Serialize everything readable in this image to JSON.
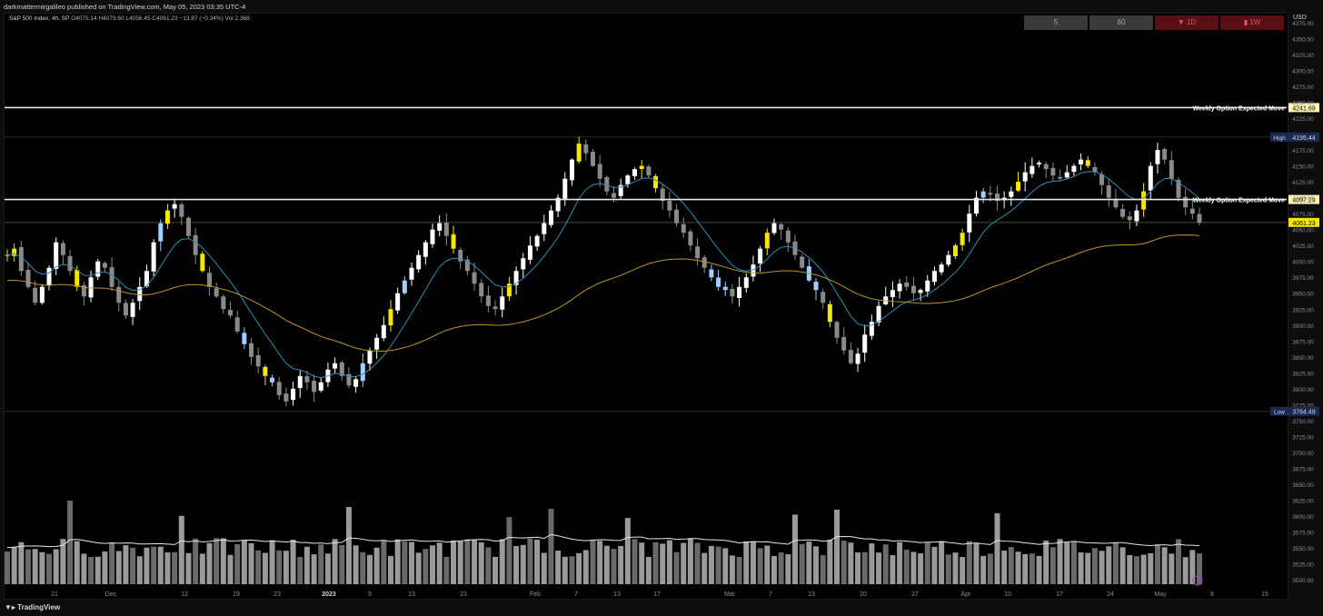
{
  "header": {
    "publisher": "darkmattermirgalileo published on TradingView.com, May 05, 2023 03:35 UTC-4"
  },
  "legend": {
    "symbol": "S&P 500 Index, 4h, SP",
    "open": "O4075.14",
    "high": "H4079.60",
    "low": "L4056.45",
    "close": "C4061.23",
    "change": "−13.87 (−0.34%)",
    "volume": "Vol 2.368"
  },
  "timeframes": [
    {
      "label": "5",
      "style": "gray"
    },
    {
      "label": "60",
      "style": "gray"
    },
    {
      "label": "▼ 1D",
      "style": "red"
    },
    {
      "label": "▮ 1W",
      "style": "red"
    }
  ],
  "currency": "USD",
  "footer": {
    "brand": "TradingView"
  },
  "colors": {
    "background": "#000000",
    "up_candle": "#ffffff",
    "down_candle": "#8a8a8a",
    "highlight_blue": "#9fd0ff",
    "highlight_yellow": "#f5e600",
    "ema_fast": "#2f8fb0",
    "ema_slow": "#b8952a",
    "volume_ma": "#e6e6e6"
  },
  "chart_data": {
    "type": "candlestick",
    "interval": "4h",
    "ylim": [
      3490,
      4385
    ],
    "y_ticks": [
      4375,
      4350,
      4325,
      4300,
      4275,
      4250,
      4225,
      4200,
      4175,
      4150,
      4125,
      4100,
      4075,
      4050,
      4025,
      4000,
      3975,
      3950,
      3925,
      3900,
      3875,
      3850,
      3825,
      3800,
      3775,
      3750,
      3725,
      3700,
      3675,
      3650,
      3625,
      3600,
      3575,
      3550,
      3525,
      3500
    ],
    "x_ticks": [
      "21",
      "Dec",
      "12",
      "19",
      "23",
      "2023",
      "9",
      "13",
      "23",
      "Feb",
      "7",
      "13",
      "17",
      "Mar",
      "7",
      "13",
      "20",
      "27",
      "Apr",
      "10",
      "17",
      "24",
      "May",
      "8",
      "15"
    ],
    "horizontal_lines": [
      {
        "label": "Weekly Option Expected Move",
        "value": 4241.69,
        "value_label": "4241.69"
      },
      {
        "label": "Weekly Option Expected Move",
        "value": 4097.29,
        "value_label": "4097.29"
      }
    ],
    "high_marker": {
      "label": "High",
      "value": 4195.44,
      "value_label": "4195.44"
    },
    "low_marker": {
      "label": "Low",
      "value": 3764.49,
      "value_label": "3764.49"
    },
    "last_price": {
      "value": 4061.23,
      "value_label": "4061.23"
    },
    "ohlc_path": [
      4010,
      4020,
      3985,
      3960,
      3935,
      3960,
      3990,
      4030,
      4010,
      3985,
      3960,
      3945,
      3975,
      4000,
      3990,
      3960,
      3935,
      3915,
      3935,
      3960,
      3985,
      4030,
      4060,
      4080,
      4090,
      4070,
      4040,
      4010,
      3985,
      3960,
      3945,
      3925,
      3915,
      3890,
      3870,
      3850,
      3835,
      3820,
      3810,
      3790,
      3780,
      3800,
      3820,
      3810,
      3795,
      3810,
      3830,
      3840,
      3820,
      3805,
      3815,
      3840,
      3860,
      3880,
      3900,
      3925,
      3950,
      3970,
      3990,
      4010,
      4030,
      4050,
      4060,
      4040,
      4020,
      4000,
      3985,
      3965,
      3945,
      3930,
      3925,
      3945,
      3965,
      3985,
      4005,
      4025,
      4040,
      4060,
      4080,
      4100,
      4130,
      4160,
      4185,
      4170,
      4150,
      4130,
      4110,
      4100,
      4120,
      4135,
      4145,
      4150,
      4135,
      4115,
      4095,
      4080,
      4060,
      4045,
      4025,
      4005,
      3990,
      3975,
      3960,
      3955,
      3945,
      3960,
      3975,
      3995,
      4020,
      4045,
      4060,
      4050,
      4030,
      4010,
      3990,
      3970,
      3955,
      3935,
      3905,
      3880,
      3860,
      3840,
      3855,
      3885,
      3905,
      3930,
      3945,
      3955,
      3965,
      3960,
      3950,
      3955,
      3970,
      3985,
      3995,
      4010,
      4025,
      4045,
      4075,
      4100,
      4110,
      4105,
      4095,
      4100,
      4110,
      4125,
      4140,
      4150,
      4155,
      4145,
      4135,
      4130,
      4140,
      4150,
      4160,
      4150,
      4140,
      4120,
      4100,
      4085,
      4070,
      4065,
      4080,
      4110,
      4150,
      4175,
      4160,
      4130,
      4100,
      4085,
      4075,
      4061
    ],
    "volume_ylim": [
      0,
      1
    ],
    "volume_profile": "relative bar heights; highest spikes near late Nov, mid Dec, mid Jan and mid Mar"
  }
}
